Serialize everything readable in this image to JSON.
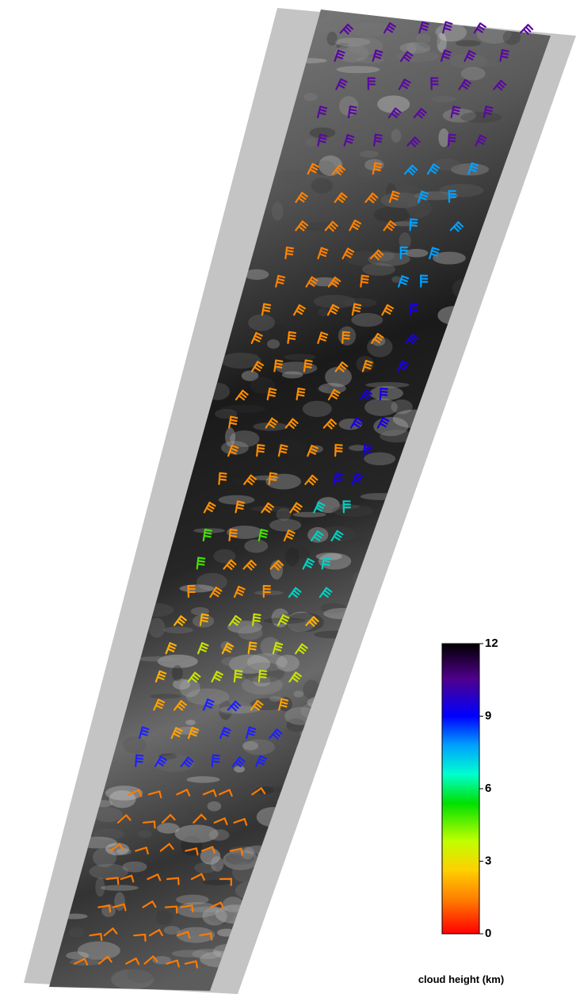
{
  "colorbar": {
    "label": "cloud height (km)",
    "range": [
      0,
      12
    ],
    "ticks": [
      0,
      3,
      6,
      9,
      12
    ]
  }
}
